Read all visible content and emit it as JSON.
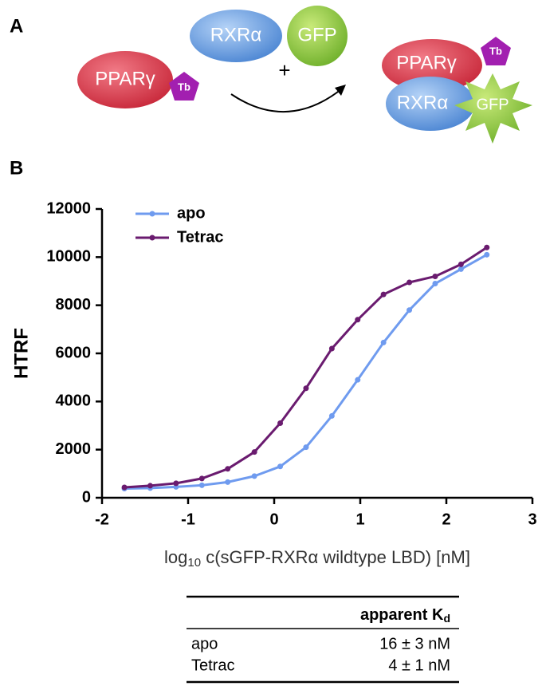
{
  "figure": {
    "panel_a": "A",
    "panel_b": "B"
  },
  "diagram": {
    "reactant_1": {
      "protein": "PPARγ",
      "tag": "Tb"
    },
    "reactant_2": {
      "protein": "RXRα",
      "tag": "GFP"
    },
    "operator": "+",
    "product": {
      "protein_1": "PPARγ",
      "tag_1": "Tb",
      "protein_2": "RXRα",
      "tag_2": "GFP"
    }
  },
  "chart_data": {
    "type": "line",
    "x_label": {
      "base": "log",
      "sub": "10",
      "rest": " c(sGFP-RXRα wildtype LBD) [nM]"
    },
    "y_label": "HTRF",
    "x": [
      -1.74,
      -1.44,
      -1.14,
      -0.84,
      -0.54,
      -0.23,
      0.07,
      0.37,
      0.67,
      0.97,
      1.27,
      1.57,
      1.87,
      2.17,
      2.47
    ],
    "series": [
      {
        "name": "apo",
        "color": "#6f9bef",
        "values": [
          380,
          400,
          450,
          520,
          650,
          900,
          1300,
          2100,
          3400,
          4900,
          6450,
          7800,
          8900,
          9500,
          10100
        ]
      },
      {
        "name": "Tetrac",
        "color": "#6a1b6f",
        "values": [
          430,
          500,
          600,
          800,
          1200,
          1900,
          3100,
          4550,
          6200,
          7400,
          8450,
          8950,
          9200,
          9700,
          10400
        ]
      }
    ],
    "xlim": [
      -2,
      3
    ],
    "xticks": [
      -2,
      -1,
      0,
      1,
      2,
      3
    ],
    "ylim": [
      0,
      12000
    ],
    "yticks": [
      0,
      2000,
      4000,
      6000,
      8000,
      10000,
      12000
    ],
    "grid": false,
    "legend": "upper left"
  },
  "table": {
    "header": {
      "text": "apparent K",
      "sub": "d"
    },
    "rows": [
      [
        "apo",
        "16 ± 3 nM"
      ],
      [
        "Tetrac",
        "4 ± 1 nM"
      ]
    ]
  }
}
